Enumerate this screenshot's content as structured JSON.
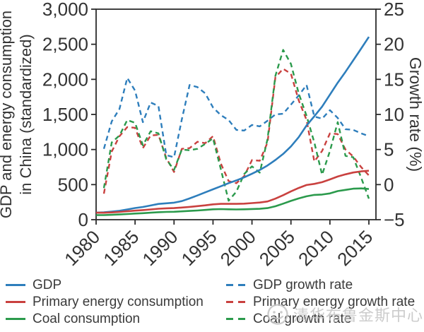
{
  "chart_data": {
    "type": "line",
    "title": "",
    "years": [
      1980,
      1981,
      1982,
      1983,
      1984,
      1985,
      1986,
      1987,
      1988,
      1989,
      1990,
      1991,
      1992,
      1993,
      1994,
      1995,
      1996,
      1997,
      1998,
      1999,
      2000,
      2001,
      2002,
      2003,
      2004,
      2005,
      2006,
      2007,
      2008,
      2009,
      2010,
      2011,
      2012,
      2013,
      2014,
      2015
    ],
    "x_axis": {
      "range": [
        1980,
        2015
      ],
      "ticks": [
        1980,
        1985,
        1990,
        1995,
        2000,
        2005,
        2010,
        2015
      ],
      "tick_labels": [
        "1980",
        "1985",
        "1990",
        "1995",
        "2000",
        "2005",
        "2010",
        "2015"
      ]
    },
    "left_axis": {
      "label": "GDP and energy consumption in China (standardized)",
      "label_lines": [
        "GDP and energy consumption",
        "in China (standardized)"
      ],
      "range": [
        0,
        3000
      ],
      "ticks": [
        0,
        500,
        1000,
        1500,
        2000,
        2500,
        3000
      ],
      "tick_labels": [
        "0",
        "500",
        "1,000",
        "1,500",
        "2,000",
        "2,500",
        "3,000"
      ]
    },
    "right_axis": {
      "label": "Growth rate (%)",
      "range": [
        -5,
        25
      ],
      "ticks": [
        -5,
        0,
        5,
        10,
        15,
        20,
        25
      ],
      "tick_labels": [
        "−5",
        "0",
        "5",
        "10",
        "15",
        "20",
        "25"
      ]
    },
    "grid": false,
    "legend_position": "below-two-columns",
    "series": [
      {
        "id": "gdp",
        "name": "GDP",
        "axis": "left",
        "color": "#2e7ebc",
        "dashed": false,
        "start_year": 1980,
        "values": [
          100,
          105,
          115,
          127,
          146,
          166,
          181,
          202,
          224,
          234,
          243,
          265,
          303,
          345,
          390,
          433,
          476,
          520,
          560,
          603,
          655,
          709,
          773,
          851,
          937,
          1044,
          1176,
          1343,
          1474,
          1612,
          1783,
          1952,
          2107,
          2271,
          2437,
          2605
        ]
      },
      {
        "id": "energy",
        "name": "Primary energy consumption",
        "axis": "left",
        "color": "#c9413f",
        "dashed": false,
        "start_year": 1980,
        "values": [
          100,
          99,
          104,
          111,
          120,
          129,
          137,
          146,
          156,
          162,
          165,
          173,
          182,
          193,
          204,
          218,
          225,
          226,
          226,
          229,
          237,
          245,
          260,
          300,
          349,
          404,
          452,
          494,
          510,
          535,
          574,
          615,
          646,
          672,
          689,
          698
        ]
      },
      {
        "id": "coal",
        "name": "Coal consumption",
        "axis": "left",
        "color": "#2b9a4c",
        "dashed": false,
        "start_year": 1980,
        "values": [
          65,
          65,
          69,
          74,
          81,
          88,
          93,
          100,
          107,
          111,
          113,
          119,
          125,
          131,
          139,
          148,
          151,
          148,
          146,
          148,
          152,
          155,
          165,
          191,
          229,
          268,
          303,
          333,
          353,
          358,
          375,
          408,
          425,
          442,
          446,
          437
        ]
      },
      {
        "id": "gdp_growth",
        "name": "GDP growth rate",
        "axis": "right",
        "color": "#2e7ebc",
        "dashed": true,
        "start_year": 1981,
        "values": [
          5.1,
          9.0,
          10.8,
          15.2,
          13.4,
          8.9,
          11.7,
          11.2,
          4.2,
          3.9,
          9.3,
          14.2,
          13.9,
          13.0,
          11.0,
          9.9,
          9.2,
          7.8,
          7.7,
          8.5,
          8.3,
          9.1,
          10.0,
          10.1,
          11.4,
          12.7,
          14.2,
          9.7,
          9.4,
          10.6,
          9.5,
          7.9,
          7.8,
          7.3,
          6.9
        ]
      },
      {
        "id": "energy_growth",
        "name": "Primary energy growth rate",
        "axis": "right",
        "color": "#c9413f",
        "dashed": true,
        "start_year": 1981,
        "values": [
          -1.3,
          4.7,
          6.9,
          8.2,
          8.1,
          5.2,
          7.0,
          7.1,
          3.8,
          1.8,
          5.1,
          5.2,
          6.1,
          5.9,
          6.9,
          3.0,
          0.5,
          0.2,
          1.2,
          3.5,
          3.4,
          6.0,
          15.3,
          16.5,
          15.8,
          12.0,
          9.2,
          3.3,
          4.8,
          7.3,
          7.2,
          5.0,
          4.0,
          2.5,
          1.3
        ]
      },
      {
        "id": "coal_growth",
        "name": "Coal growth rate",
        "axis": "right",
        "color": "#2b9a4c",
        "dashed": true,
        "start_year": 1981,
        "values": [
          -0.5,
          6.0,
          7.0,
          9.2,
          8.8,
          5.6,
          7.6,
          7.3,
          3.6,
          2.1,
          5.0,
          4.9,
          5.1,
          5.8,
          6.6,
          2.2,
          -2.3,
          -1.0,
          1.5,
          2.6,
          1.7,
          6.5,
          15.5,
          19.2,
          17.2,
          13.0,
          9.8,
          6.0,
          1.4,
          4.8,
          8.9,
          4.1,
          3.9,
          1.0,
          -2.0
        ]
      }
    ]
  },
  "style": {
    "axis_color": "#2b2b2b",
    "tick_text_color": "#333333",
    "legend_text_color": "#3a3a3a",
    "watermark_color": "#c4c4c4",
    "background": "#ffffff"
  },
  "legend": {
    "column_1_series": [
      0,
      1,
      2
    ],
    "column_2_series": [
      3,
      4,
      5
    ]
  },
  "watermark": {
    "text": "清华布鲁金斯中心"
  }
}
